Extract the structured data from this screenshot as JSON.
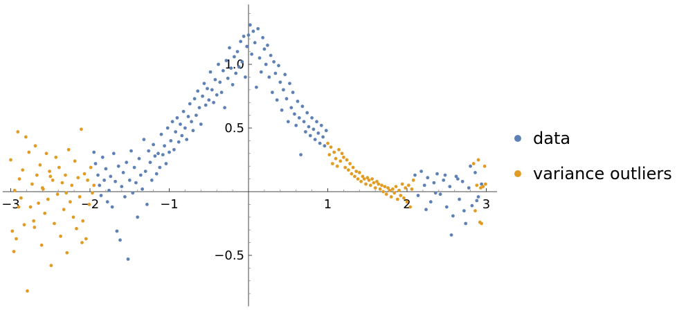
{
  "chart_data": {
    "type": "scatter",
    "title": "",
    "xlabel": "",
    "ylabel": "",
    "xlim": [
      -3.05,
      3.05
    ],
    "ylim": [
      -0.9,
      1.47
    ],
    "xticks": [
      {
        "value": -3,
        "label": "−3"
      },
      {
        "value": -2,
        "label": "−2"
      },
      {
        "value": -1,
        "label": "−1"
      },
      {
        "value": 1,
        "label": "1"
      },
      {
        "value": 2,
        "label": "2"
      },
      {
        "value": 3,
        "label": "3"
      }
    ],
    "yticks": [
      {
        "value": -0.5,
        "label": "−0.5"
      },
      {
        "value": 0.5,
        "label": "0.5"
      },
      {
        "value": 1.0,
        "label": "1.0"
      }
    ],
    "legend_position": "right",
    "series": [
      {
        "name": "data",
        "color": "#5E81B5",
        "points": [
          [
            -1.95,
            0.31
          ],
          [
            -1.93,
            0.22
          ],
          [
            -1.9,
            0.13
          ],
          [
            -1.88,
            0.05
          ],
          [
            -1.86,
            -0.03
          ],
          [
            -1.84,
            0.27
          ],
          [
            -1.82,
            0.09
          ],
          [
            -1.8,
            0.18
          ],
          [
            -1.78,
            -0.08
          ],
          [
            -1.76,
            0.01
          ],
          [
            -1.74,
            0.12
          ],
          [
            -1.72,
            -0.12
          ],
          [
            -1.7,
            0.3
          ],
          [
            -1.68,
            0.08
          ],
          [
            -1.66,
            -0.31
          ],
          [
            -1.64,
            0.2
          ],
          [
            -1.62,
            -0.38
          ],
          [
            -1.6,
            0.04
          ],
          [
            -1.58,
            0.15
          ],
          [
            -1.56,
            -0.04
          ],
          [
            -1.54,
            0.23
          ],
          [
            -1.52,
            -0.53
          ],
          [
            -1.5,
            0.09
          ],
          [
            -1.48,
            0.32
          ],
          [
            -1.46,
            -0.01
          ],
          [
            -1.44,
            0.19
          ],
          [
            -1.42,
            0.07
          ],
          [
            -1.4,
            -0.2
          ],
          [
            -1.38,
            0.26
          ],
          [
            -1.36,
            0.13
          ],
          [
            -1.34,
            0.02
          ],
          [
            -1.32,
            0.41
          ],
          [
            -1.3,
            0.16
          ],
          [
            -1.28,
            -0.1
          ],
          [
            -1.26,
            0.32
          ],
          [
            -1.24,
            0.23
          ],
          [
            -1.22,
            0.09
          ],
          [
            -1.2,
            0.37
          ],
          [
            -1.18,
            0.28
          ],
          [
            -1.16,
            0.14
          ],
          [
            -1.14,
            0.3
          ],
          [
            -1.12,
            0.19
          ],
          [
            -1.1,
            0.45
          ],
          [
            -1.08,
            0.29
          ],
          [
            -1.06,
            0.36
          ],
          [
            -1.04,
            0.22
          ],
          [
            -1.02,
            0.5
          ],
          [
            -1.0,
            0.31
          ],
          [
            -0.98,
            0.4
          ],
          [
            -0.96,
            0.55
          ],
          [
            -0.94,
            0.33
          ],
          [
            -0.92,
            0.47
          ],
          [
            -0.9,
            0.58
          ],
          [
            -0.88,
            0.39
          ],
          [
            -0.86,
            0.53
          ],
          [
            -0.84,
            0.44
          ],
          [
            -0.82,
            0.63
          ],
          [
            -0.8,
            0.5
          ],
          [
            -0.78,
            0.41
          ],
          [
            -0.76,
            0.59
          ],
          [
            -0.74,
            0.69
          ],
          [
            -0.72,
            0.55
          ],
          [
            -0.7,
            0.48
          ],
          [
            -0.68,
            0.73
          ],
          [
            -0.66,
            0.6
          ],
          [
            -0.64,
            0.79
          ],
          [
            -0.62,
            0.66
          ],
          [
            -0.6,
            0.53
          ],
          [
            -0.58,
            0.75
          ],
          [
            -0.56,
            0.85
          ],
          [
            -0.54,
            0.68
          ],
          [
            -0.52,
            0.81
          ],
          [
            -0.5,
            0.72
          ],
          [
            -0.48,
            0.94
          ],
          [
            -0.46,
            0.8
          ],
          [
            -0.44,
            0.7
          ],
          [
            -0.42,
            0.88
          ],
          [
            -0.4,
            0.76
          ],
          [
            -0.38,
            1.0
          ],
          [
            -0.36,
            0.86
          ],
          [
            -0.34,
            0.78
          ],
          [
            -0.32,
            0.95
          ],
          [
            -0.3,
            0.66
          ],
          [
            -0.28,
            1.03
          ],
          [
            -0.26,
            0.89
          ],
          [
            -0.24,
            1.13
          ],
          [
            -0.22,
            0.97
          ],
          [
            -0.2,
            0.84
          ],
          [
            -0.18,
            1.06
          ],
          [
            -0.16,
            0.93
          ],
          [
            -0.14,
            1.1
          ],
          [
            -0.12,
            0.98
          ],
          [
            -0.1,
            1.18
          ],
          [
            -0.08,
            1.02
          ],
          [
            -0.06,
            1.22
          ],
          [
            -0.04,
            0.9
          ],
          [
            -0.02,
            1.14
          ],
          [
            0.0,
            1.23
          ],
          [
            0.02,
            1.31
          ],
          [
            0.04,
            1.08
          ],
          [
            0.06,
            1.26
          ],
          [
            0.08,
            1.17
          ],
          [
            0.1,
            0.82
          ],
          [
            0.12,
            1.28
          ],
          [
            0.14,
            1.05
          ],
          [
            0.16,
            0.94
          ],
          [
            0.18,
            1.21
          ],
          [
            0.2,
            1.12
          ],
          [
            0.22,
            1.0
          ],
          [
            0.24,
            1.15
          ],
          [
            0.26,
            0.9
          ],
          [
            0.28,
            1.07
          ],
          [
            0.3,
            0.78
          ],
          [
            0.32,
            1.02
          ],
          [
            0.34,
            0.93
          ],
          [
            0.36,
            0.72
          ],
          [
            0.38,
            0.99
          ],
          [
            0.4,
            0.86
          ],
          [
            0.42,
            0.64
          ],
          [
            0.44,
            0.8
          ],
          [
            0.46,
            0.92
          ],
          [
            0.48,
            0.73
          ],
          [
            0.5,
            0.55
          ],
          [
            0.52,
            0.85
          ],
          [
            0.54,
            0.66
          ],
          [
            0.56,
            0.78
          ],
          [
            0.58,
            0.61
          ],
          [
            0.6,
            0.52
          ],
          [
            0.62,
            0.71
          ],
          [
            0.64,
            0.58
          ],
          [
            0.66,
            0.29
          ],
          [
            0.68,
            0.67
          ],
          [
            0.7,
            0.55
          ],
          [
            0.72,
            0.47
          ],
          [
            0.74,
            0.62
          ],
          [
            0.76,
            0.51
          ],
          [
            0.78,
            0.44
          ],
          [
            0.8,
            0.58
          ],
          [
            0.82,
            0.49
          ],
          [
            0.84,
            0.41
          ],
          [
            0.86,
            0.55
          ],
          [
            0.88,
            0.46
          ],
          [
            0.9,
            0.38
          ],
          [
            0.92,
            0.52
          ],
          [
            0.94,
            0.43
          ],
          [
            0.96,
            0.36
          ],
          [
            0.98,
            0.48
          ],
          [
            2.1,
            0.13
          ],
          [
            2.14,
            -0.03
          ],
          [
            2.18,
            0.16
          ],
          [
            2.22,
            0.05
          ],
          [
            2.26,
            0.11
          ],
          [
            2.3,
            -0.08
          ],
          [
            2.34,
            0.07
          ],
          [
            2.38,
            0.14
          ],
          [
            2.42,
            -0.02
          ],
          [
            2.46,
            0.09
          ],
          [
            2.5,
            -0.12
          ],
          [
            2.54,
            0.04
          ],
          [
            2.58,
            -0.19
          ],
          [
            2.62,
            0.12
          ],
          [
            2.66,
            -0.06
          ],
          [
            2.7,
            0.08
          ],
          [
            2.74,
            -0.25
          ],
          [
            2.78,
            0.03
          ],
          [
            2.82,
            -0.11
          ],
          [
            2.86,
            0.15
          ],
          [
            2.9,
            -0.04
          ],
          [
            2.94,
            0.06
          ],
          [
            2.24,
            -0.14
          ],
          [
            2.36,
            -0.01
          ],
          [
            2.48,
            0.13
          ],
          [
            2.56,
            -0.34
          ],
          [
            2.64,
            0.1
          ],
          [
            2.72,
            -0.15
          ],
          [
            2.8,
            0.2
          ],
          [
            2.88,
            -0.07
          ]
        ]
      },
      {
        "name": "variance outliers",
        "color": "#E19C24",
        "points": [
          [
            -3.0,
            0.25
          ],
          [
            -2.98,
            -0.31
          ],
          [
            -2.96,
            -0.47
          ],
          [
            -2.95,
            0.01
          ],
          [
            -2.93,
            -0.37
          ],
          [
            -2.91,
            0.47
          ],
          [
            -2.89,
            0.1
          ],
          [
            -2.87,
            -0.05
          ],
          [
            -2.85,
            0.17
          ],
          [
            -2.83,
            -0.26
          ],
          [
            -2.81,
            0.43
          ],
          [
            -2.79,
            -0.78
          ],
          [
            -2.77,
            0.31
          ],
          [
            -2.75,
            -0.12
          ],
          [
            -2.73,
            0.06
          ],
          [
            -2.71,
            -0.23
          ],
          [
            -2.69,
            0.36
          ],
          [
            -2.67,
            0.13
          ],
          [
            -2.65,
            -0.09
          ],
          [
            -2.63,
            0.21
          ],
          [
            -2.61,
            -0.42
          ],
          [
            -2.59,
            0.02
          ],
          [
            -2.57,
            -0.17
          ],
          [
            -2.55,
            0.3
          ],
          [
            -2.53,
            -0.06
          ],
          [
            -2.51,
            0.16
          ],
          [
            -2.49,
            -0.58
          ],
          [
            -2.47,
            0.09
          ],
          [
            -2.45,
            -0.25
          ],
          [
            -2.43,
            0.27
          ],
          [
            -2.41,
            -0.02
          ],
          [
            -2.39,
            0.19
          ],
          [
            -2.37,
            -0.35
          ],
          [
            -2.35,
            0.07
          ],
          [
            -2.33,
            -0.14
          ],
          [
            -2.31,
            0.13
          ],
          [
            -2.29,
            -0.48
          ],
          [
            -2.27,
            0.33
          ],
          [
            -2.25,
            -0.08
          ],
          [
            -2.23,
            0.05
          ],
          [
            -2.21,
            -0.2
          ],
          [
            -2.19,
            0.24
          ],
          [
            -2.17,
            -0.29
          ],
          [
            -2.15,
            0.11
          ],
          [
            -2.13,
            -0.04
          ],
          [
            -2.11,
            0.49
          ],
          [
            -2.09,
            -0.23
          ],
          [
            -2.07,
            0.14
          ],
          [
            -2.05,
            -0.37
          ],
          [
            -2.03,
            0.09
          ],
          [
            -2.01,
            -0.1
          ],
          [
            -1.99,
            0.19
          ],
          [
            -1.97,
            -0.01
          ],
          [
            -1.95,
            0.05
          ],
          [
            -2.9,
            -0.12
          ],
          [
            -2.7,
            -0.28
          ],
          [
            -2.5,
            0.12
          ],
          [
            -2.3,
            -0.01
          ],
          [
            -2.1,
            -0.4
          ],
          [
            -2.6,
            0.03
          ],
          [
            1.0,
            0.38
          ],
          [
            1.02,
            0.29
          ],
          [
            1.04,
            0.35
          ],
          [
            1.06,
            0.22
          ],
          [
            1.08,
            0.31
          ],
          [
            1.1,
            0.26
          ],
          [
            1.12,
            0.2
          ],
          [
            1.14,
            0.33
          ],
          [
            1.16,
            0.24
          ],
          [
            1.18,
            0.3
          ],
          [
            1.2,
            0.27
          ],
          [
            1.22,
            0.19
          ],
          [
            1.24,
            0.25
          ],
          [
            1.26,
            0.17
          ],
          [
            1.28,
            0.22
          ],
          [
            1.3,
            0.14
          ],
          [
            1.32,
            0.19
          ],
          [
            1.34,
            0.12
          ],
          [
            1.36,
            0.16
          ],
          [
            1.38,
            0.1
          ],
          [
            1.4,
            0.15
          ],
          [
            1.42,
            0.08
          ],
          [
            1.44,
            0.12
          ],
          [
            1.46,
            0.1
          ],
          [
            1.48,
            0.06
          ],
          [
            1.5,
            0.11
          ],
          [
            1.52,
            0.09
          ],
          [
            1.54,
            0.05
          ],
          [
            1.56,
            0.1
          ],
          [
            1.58,
            0.07
          ],
          [
            1.6,
            0.03
          ],
          [
            1.62,
            0.08
          ],
          [
            1.64,
            0.06
          ],
          [
            1.66,
            0.02
          ],
          [
            1.68,
            0.05
          ],
          [
            1.7,
            0.0
          ],
          [
            1.72,
            0.04
          ],
          [
            1.74,
            -0.02
          ],
          [
            1.76,
            0.03
          ],
          [
            1.78,
            0.01
          ],
          [
            1.8,
            -0.04
          ],
          [
            1.82,
            0.02
          ],
          [
            1.84,
            -0.01
          ],
          [
            1.86,
            0.04
          ],
          [
            1.88,
            -0.06
          ],
          [
            1.9,
            0.01
          ],
          [
            1.92,
            -0.03
          ],
          [
            1.94,
            0.06
          ],
          [
            1.96,
            -0.05
          ],
          [
            1.98,
            0.03
          ],
          [
            2.0,
            -0.08
          ],
          [
            2.02,
            0.05
          ],
          [
            2.04,
            -0.12
          ],
          [
            2.06,
            0.02
          ],
          [
            2.08,
            0.09
          ],
          [
            2.84,
            0.22
          ],
          [
            2.86,
            -0.15
          ],
          [
            2.88,
            0.05
          ],
          [
            2.9,
            0.25
          ],
          [
            2.92,
            -0.24
          ],
          [
            2.94,
            -0.25
          ],
          [
            2.96,
            0.04
          ],
          [
            2.98,
            0.2
          ],
          [
            2.99,
            0.06
          ],
          [
            2.93,
            0.03
          ]
        ]
      }
    ]
  }
}
